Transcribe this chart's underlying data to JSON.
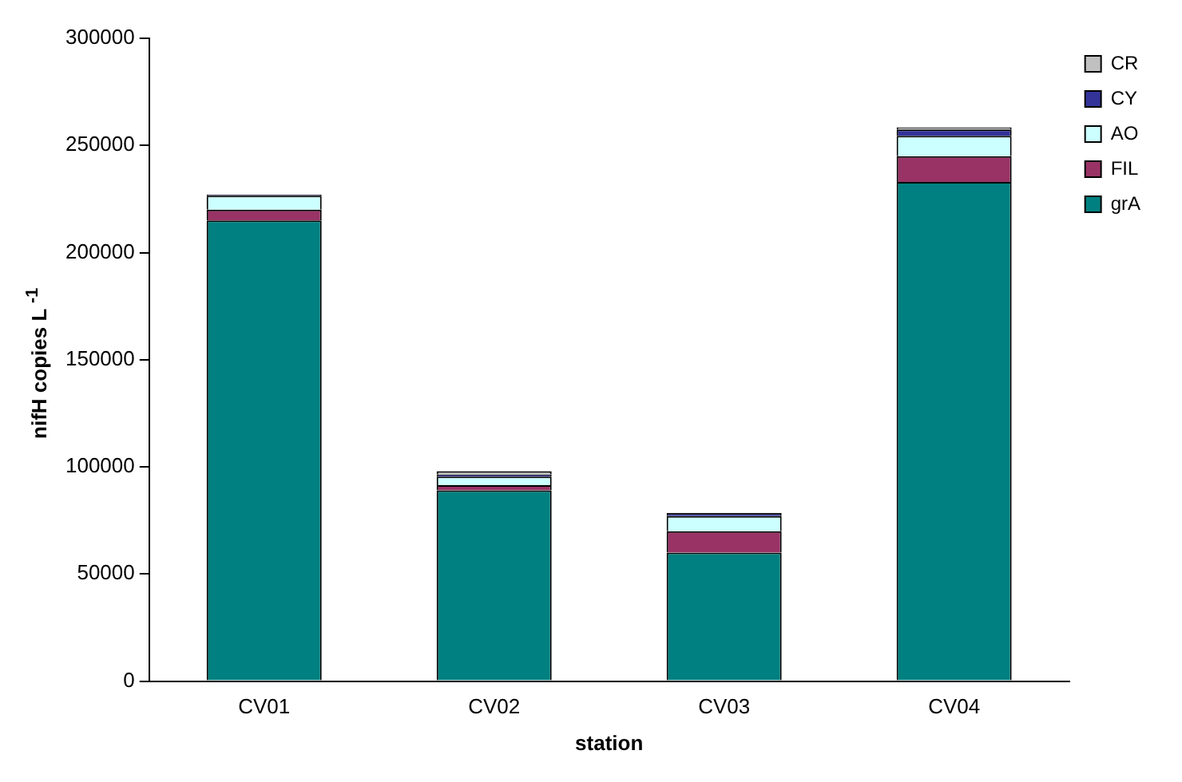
{
  "chart_data": {
    "type": "bar",
    "stacked": true,
    "xlabel": "station",
    "ylabel": "nifH copies L $^{-1}$",
    "categories": [
      "CV01",
      "CV02",
      "CV03",
      "CV04"
    ],
    "series": [
      {
        "name": "grA",
        "color": "#008080",
        "values": [
          215000,
          89000,
          60000,
          233000
        ]
      },
      {
        "name": "FIL",
        "color": "#993366",
        "values": [
          5000,
          2500,
          10000,
          12000
        ]
      },
      {
        "name": "AO",
        "color": "#ccffff",
        "values": [
          6500,
          4000,
          7000,
          9500
        ]
      },
      {
        "name": "CY",
        "color": "#333399",
        "values": [
          500,
          1000,
          1500,
          3000
        ]
      },
      {
        "name": "CR",
        "color": "#c0c0c0",
        "values": [
          0,
          1500,
          null,
          1000
        ]
      }
    ],
    "ylim": [
      0,
      300000
    ],
    "yticks": [
      0,
      50000,
      100000,
      150000,
      200000,
      250000,
      300000
    ],
    "grid": false,
    "legend": "top right"
  }
}
